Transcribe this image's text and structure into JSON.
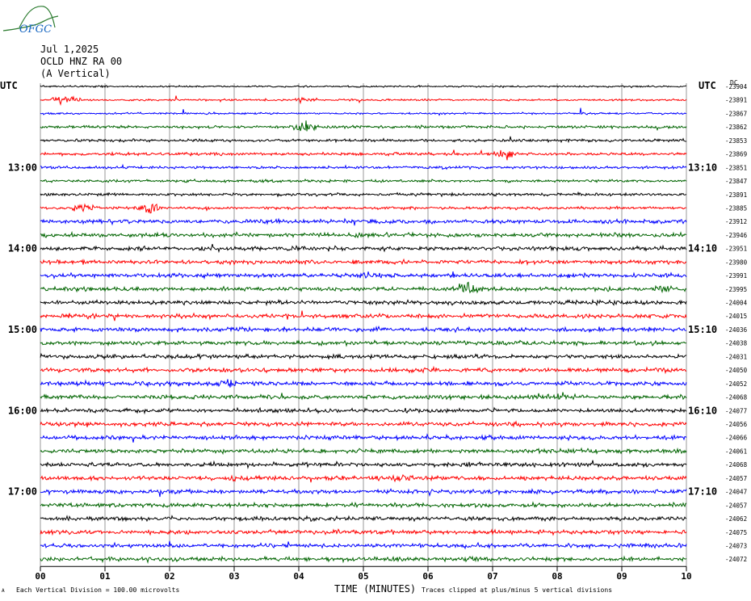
{
  "header": {
    "date": "Jul 1,2025",
    "station": "OCLD HNZ RA 00",
    "component": "(A Vertical)",
    "logo_text": "OFGC"
  },
  "labels": {
    "utc_left": "UTC",
    "utc_right": "UTC",
    "offset_dc": "DC",
    "x_axis_title": "TIME (MINUTES)",
    "scale_note": "Each Vertical Division =  100.00 microvolts",
    "clip_note": "Traces clipped at plus/minus 5 vertical divisions",
    "corner_mark": "A"
  },
  "chart_data": {
    "type": "line",
    "x_ticks": [
      "00",
      "01",
      "02",
      "03",
      "04",
      "05",
      "06",
      "07",
      "08",
      "09",
      "10"
    ],
    "x_range": [
      0,
      10
    ],
    "left_time_labels": [
      {
        "row": 6,
        "text": "13:00"
      },
      {
        "row": 12,
        "text": "14:00"
      },
      {
        "row": 18,
        "text": "15:00"
      },
      {
        "row": 24,
        "text": "16:00"
      },
      {
        "row": 30,
        "text": "17:00"
      }
    ],
    "right_time_labels": [
      {
        "row": 6,
        "text": "13:10"
      },
      {
        "row": 12,
        "text": "14:10"
      },
      {
        "row": 18,
        "text": "15:10"
      },
      {
        "row": 24,
        "text": "16:10"
      },
      {
        "row": 30,
        "text": "17:10"
      }
    ],
    "trace_colors": [
      "#000000",
      "#ff0000",
      "#0000ff",
      "#006400"
    ],
    "dc_offsets": [
      "-23904",
      "-23891",
      "-23867",
      "-23862",
      "-23853",
      "-23869",
      "-23851",
      "-23847",
      "-23891",
      "-23885",
      "-23912",
      "-23946",
      "-23951",
      "-23980",
      "-23991",
      "-23995",
      "-24004",
      "-24015",
      "-24036",
      "-24038",
      "-24031",
      "-24050",
      "-24052",
      "-24068",
      "-24077",
      "-24056",
      "-24066",
      "-24061",
      "-24068",
      "-24057",
      "-24047",
      "-24057",
      "-24062",
      "-24075",
      "-24073",
      "-24072"
    ]
  }
}
